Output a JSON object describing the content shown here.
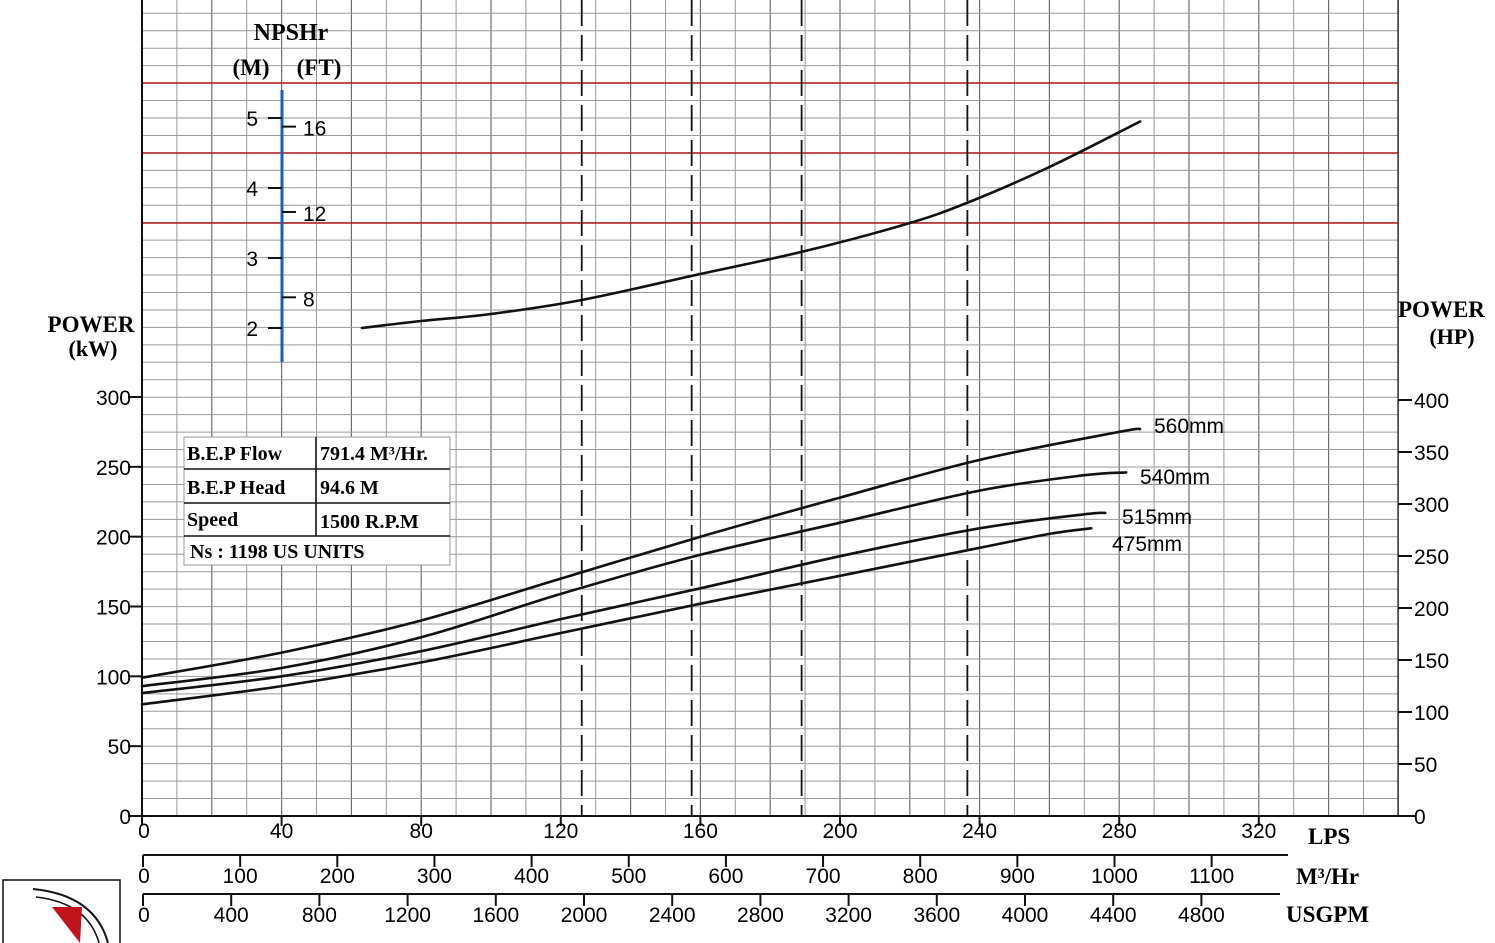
{
  "chart_data": {
    "type": "line",
    "x_axes": {
      "lps": {
        "label": "LPS",
        "ticks": [
          0,
          40,
          80,
          120,
          160,
          200,
          240,
          280,
          320
        ],
        "range": [
          0,
          360
        ]
      },
      "m3hr": {
        "label": "M³/Hr",
        "ticks": [
          0,
          100,
          200,
          300,
          400,
          500,
          600,
          700,
          800,
          900,
          1000,
          1100
        ]
      },
      "usgpm": {
        "label": "USGPM",
        "ticks": [
          0,
          400,
          800,
          1200,
          1600,
          2000,
          2400,
          2800,
          3200,
          3600,
          4000,
          4400,
          4800
        ]
      }
    },
    "power_kw_axis": {
      "label_line1": "POWER",
      "label_line2": "(kW)",
      "ticks": [
        0,
        50,
        100,
        150,
        200,
        250,
        300
      ],
      "range": [
        0,
        300
      ]
    },
    "power_hp_axis": {
      "label_line1": "POWER",
      "label_line2": "(HP)",
      "ticks": [
        0,
        50,
        100,
        150,
        200,
        250,
        300,
        350,
        400
      ]
    },
    "npshr_axis": {
      "title": "NPSHr",
      "unit_m": "(M)",
      "unit_ft": "(FT)",
      "m_ticks": [
        2,
        3,
        4,
        5
      ],
      "ft_ticks": [
        8,
        12,
        16
      ]
    },
    "power_series": [
      {
        "name": "560mm",
        "x": [
          0,
          40,
          80,
          120,
          160,
          200,
          240,
          280,
          286
        ],
        "y": [
          99,
          117,
          140,
          170,
          200,
          228,
          255,
          275,
          277
        ]
      },
      {
        "name": "540mm",
        "x": [
          0,
          40,
          80,
          120,
          160,
          200,
          240,
          270,
          282
        ],
        "y": [
          93,
          106,
          128,
          159,
          187,
          210,
          233,
          244,
          246
        ]
      },
      {
        "name": "515mm",
        "x": [
          0,
          40,
          80,
          120,
          160,
          200,
          240,
          270,
          276
        ],
        "y": [
          88,
          100,
          118,
          141,
          163,
          186,
          206,
          216,
          217
        ]
      },
      {
        "name": "475mm",
        "x": [
          0,
          40,
          80,
          120,
          160,
          200,
          240,
          260,
          272
        ],
        "y": [
          80,
          93,
          110,
          131,
          152,
          172,
          192,
          202,
          206
        ]
      }
    ],
    "npshr_series": {
      "name": "",
      "x": [
        63,
        80,
        100,
        126,
        158,
        190,
        220,
        237,
        260,
        286
      ],
      "y": [
        2.0,
        2.1,
        2.2,
        2.4,
        2.75,
        3.1,
        3.5,
        3.8,
        4.3,
        4.95
      ]
    },
    "dashed_flow_lines_lps": [
      126,
      157.5,
      189,
      236.5
    ],
    "red_reference_lines_m": [
      3.5,
      4.5,
      5.5
    ]
  },
  "bep_table": {
    "rows": [
      {
        "label": "B.E.P Flow",
        "value": "791.4 M³/Hr."
      },
      {
        "label": "B.E.P Head",
        "value": "94.6 M"
      },
      {
        "label": "Speed",
        "value": "1500 R.P.M"
      }
    ],
    "footer": "Ns : 1198 US UNITS"
  },
  "colors": {
    "npsh_axis": "#1a5fb4",
    "reference_lines": "#b01818",
    "logo_red": "#c0141c"
  }
}
